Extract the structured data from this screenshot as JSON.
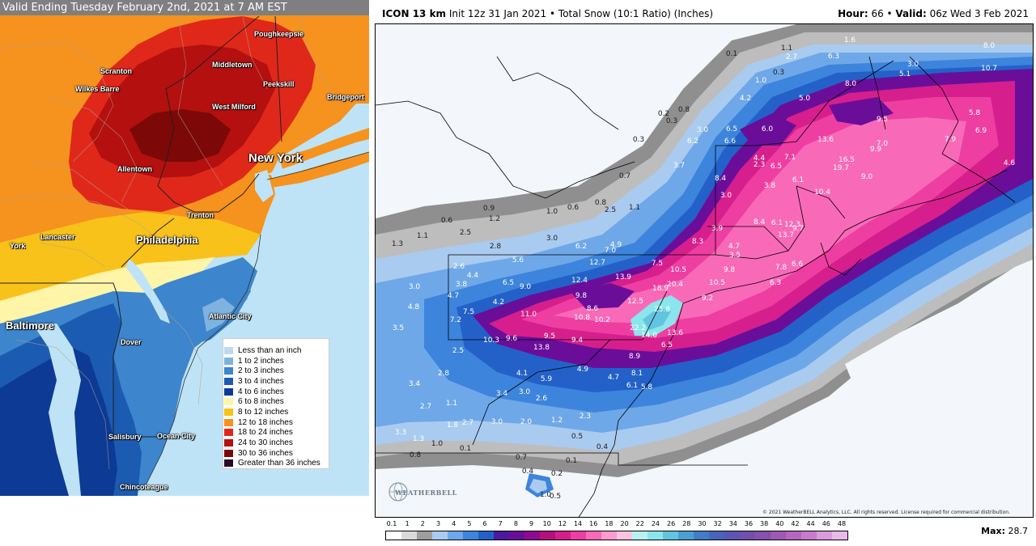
{
  "left_map": {
    "header": "Valid Ending Tuesday February 2nd, 2021 at 7 AM EST",
    "cities": [
      {
        "name": "Poughkeepsie"
      },
      {
        "name": "Scranton"
      },
      {
        "name": "Middletown"
      },
      {
        "name": "Wilkes Barre"
      },
      {
        "name": "Peekskill"
      },
      {
        "name": "Bridgeport"
      },
      {
        "name": "West Milford"
      },
      {
        "name": "New York"
      },
      {
        "name": "Allentown"
      },
      {
        "name": "Trenton"
      },
      {
        "name": "Lancaster"
      },
      {
        "name": "Philadelphia"
      },
      {
        "name": "York"
      },
      {
        "name": "Atlantic City"
      },
      {
        "name": "Baltimore"
      },
      {
        "name": "Dover"
      },
      {
        "name": "Salisbury"
      },
      {
        "name": "Ocean City"
      },
      {
        "name": "Chincoteague"
      }
    ],
    "legend": [
      {
        "label": "Less than an inch",
        "color": "#bcd9ee"
      },
      {
        "label": "1 to 2 inches",
        "color": "#7fb3df"
      },
      {
        "label": "2 to 3 inches",
        "color": "#3d85cc"
      },
      {
        "label": "3 to 4 inches",
        "color": "#1c5bb2"
      },
      {
        "label": "4 to 6 inches",
        "color": "#0c3a95"
      },
      {
        "label": "6 to 8 inches",
        "color": "#fff5a8"
      },
      {
        "label": "8 to 12 inches",
        "color": "#f9c21a"
      },
      {
        "label": "12 to 18 inches",
        "color": "#f6921e"
      },
      {
        "label": "18 to 24 inches",
        "color": "#e0281a"
      },
      {
        "label": "24 to 30 inches",
        "color": "#b3100f"
      },
      {
        "label": "30 to 36 inches",
        "color": "#7d0808"
      },
      {
        "label": "Greater than 36 inches",
        "color": "#2a0a2a"
      }
    ]
  },
  "right_map": {
    "title_model": "ICON 13 km",
    "title_rest": " Init 12z 31 Jan 2021 • Total Snow (10:1 Ratio) (Inches)",
    "hour_label": "Hour:",
    "hour_value": " 66 • ",
    "valid_label": "Valid:",
    "valid_value": " 06z Wed 3 Feb 2021",
    "copyright": "© 2021 WeatherBELL Analytics, LLC. All rights reserved. License required for commercial distribution.",
    "watermark": "WEATHERBELL",
    "max_label": "Max:",
    "max_value": " 28.7",
    "colorbar_ticks": [
      "0.1",
      "1",
      "2",
      "3",
      "4",
      "5",
      "6",
      "7",
      "8",
      "9",
      "10",
      "12",
      "14",
      "16",
      "18",
      "20",
      "22",
      "24",
      "26",
      "28",
      "30",
      "32",
      "34",
      "36",
      "38",
      "40",
      "42",
      "44",
      "46",
      "48"
    ],
    "colorbar_colors": [
      "#ffffff",
      "#d9d9d9",
      "#9e9e9e",
      "#aacbf0",
      "#6fa8e8",
      "#3d84dc",
      "#2361c8",
      "#4b1aa0",
      "#6a0e9a",
      "#8e0a8f",
      "#b3127e",
      "#d61f8c",
      "#ee3ea2",
      "#f86ab8",
      "#fc9bd0",
      "#fdc4e2",
      "#b9f1f3",
      "#8ae6ec",
      "#62c4de",
      "#4aa0d3",
      "#437cc8",
      "#4b63bd",
      "#5d55b3",
      "#7150ac",
      "#8650ac",
      "#9f58b3",
      "#b567bd",
      "#c97bcb",
      "#d99bdb",
      "#e8b9ea"
    ],
    "values": [
      {
        "v": "0.1"
      },
      {
        "v": "1.1"
      },
      {
        "v": "2.7"
      },
      {
        "v": "6.3"
      },
      {
        "v": "1.6"
      },
      {
        "v": "8.0"
      },
      {
        "v": "10.7"
      },
      {
        "v": "3.0"
      },
      {
        "v": "5.1"
      },
      {
        "v": "0.3"
      },
      {
        "v": "1.0"
      },
      {
        "v": "4.2"
      },
      {
        "v": "5.0"
      },
      {
        "v": "8.0"
      },
      {
        "v": "9.5"
      },
      {
        "v": "5.8"
      },
      {
        "v": "6.9"
      },
      {
        "v": "0.2"
      },
      {
        "v": "0.8"
      },
      {
        "v": "0.3"
      },
      {
        "v": "3.0"
      },
      {
        "v": "6.5"
      },
      {
        "v": "6.0"
      },
      {
        "v": "13.6"
      },
      {
        "v": "7.0"
      },
      {
        "v": "9.9"
      },
      {
        "v": "7.9"
      },
      {
        "v": "4.6"
      },
      {
        "v": "0.3"
      },
      {
        "v": "6.2"
      },
      {
        "v": "6.6"
      },
      {
        "v": "3.7"
      },
      {
        "v": "8.4"
      },
      {
        "v": "4.4"
      },
      {
        "v": "2.3"
      },
      {
        "v": "7.1"
      },
      {
        "v": "6.5"
      },
      {
        "v": "16.5"
      },
      {
        "v": "19.7"
      },
      {
        "v": "9.0"
      },
      {
        "v": "0.7"
      },
      {
        "v": "3.0"
      },
      {
        "v": "3.8"
      },
      {
        "v": "6.1"
      },
      {
        "v": "10.4"
      },
      {
        "v": "0.8"
      },
      {
        "v": "0.9"
      },
      {
        "v": "1.0"
      },
      {
        "v": "0.6"
      },
      {
        "v": "2.5"
      },
      {
        "v": "1.1"
      },
      {
        "v": "8.4"
      },
      {
        "v": "6.1"
      },
      {
        "v": "9.7"
      },
      {
        "v": "0.6"
      },
      {
        "v": "1.2"
      },
      {
        "v": "3.9"
      },
      {
        "v": "12.3"
      },
      {
        "v": "1.1"
      },
      {
        "v": "2.5"
      },
      {
        "v": "3.0"
      },
      {
        "v": "8.3"
      },
      {
        "v": "13.7"
      },
      {
        "v": "1.3"
      },
      {
        "v": "2.8"
      },
      {
        "v": "6.2"
      },
      {
        "v": "4.9"
      },
      {
        "v": "7.0"
      },
      {
        "v": "4.7"
      },
      {
        "v": "3.5"
      },
      {
        "v": "5.6"
      },
      {
        "v": "12.7"
      },
      {
        "v": "7.5"
      },
      {
        "v": "2.6"
      },
      {
        "v": "4.4"
      },
      {
        "v": "10.5"
      },
      {
        "v": "9.8"
      },
      {
        "v": "7.8"
      },
      {
        "v": "6.6"
      },
      {
        "v": "3.8"
      },
      {
        "v": "6.5"
      },
      {
        "v": "9.0"
      },
      {
        "v": "12.4"
      },
      {
        "v": "13.9"
      },
      {
        "v": "18.9"
      },
      {
        "v": "20.4"
      },
      {
        "v": "10.5"
      },
      {
        "v": "6.3"
      },
      {
        "v": "3.0"
      },
      {
        "v": "4.7"
      },
      {
        "v": "9.8"
      },
      {
        "v": "12.5"
      },
      {
        "v": "9.2"
      },
      {
        "v": "4.8"
      },
      {
        "v": "4.2"
      },
      {
        "v": "8.6"
      },
      {
        "v": "25.8"
      },
      {
        "v": "7.5"
      },
      {
        "v": "11.0"
      },
      {
        "v": "10.8"
      },
      {
        "v": "10.2"
      },
      {
        "v": "7.2"
      },
      {
        "v": "22.2"
      },
      {
        "v": "3.5"
      },
      {
        "v": "10.3"
      },
      {
        "v": "9.6"
      },
      {
        "v": "9.5"
      },
      {
        "v": "9.4"
      },
      {
        "v": "14.0"
      },
      {
        "v": "13.6"
      },
      {
        "v": "13.8"
      },
      {
        "v": "6.5"
      },
      {
        "v": "2.5"
      },
      {
        "v": "8.9"
      },
      {
        "v": "4.1"
      },
      {
        "v": "5.9"
      },
      {
        "v": "4.9"
      },
      {
        "v": "2.8"
      },
      {
        "v": "4.7"
      },
      {
        "v": "8.1"
      },
      {
        "v": "3.4"
      },
      {
        "v": "3.0"
      },
      {
        "v": "6.1"
      },
      {
        "v": "5.8"
      },
      {
        "v": "3.4"
      },
      {
        "v": "2.6"
      },
      {
        "v": "2.7"
      },
      {
        "v": "1.1"
      },
      {
        "v": "2.3"
      },
      {
        "v": "1.8"
      },
      {
        "v": "2.7"
      },
      {
        "v": "3.0"
      },
      {
        "v": "2.0"
      },
      {
        "v": "1.2"
      },
      {
        "v": "3.3"
      },
      {
        "v": "1.3"
      },
      {
        "v": "0.5"
      },
      {
        "v": "1.0"
      },
      {
        "v": "0.1"
      },
      {
        "v": "0.4"
      },
      {
        "v": "0.8"
      },
      {
        "v": "0.7"
      },
      {
        "v": "0.1"
      },
      {
        "v": "0.4"
      },
      {
        "v": "0.2"
      },
      {
        "v": "1.0"
      },
      {
        "v": "0.5"
      }
    ]
  }
}
